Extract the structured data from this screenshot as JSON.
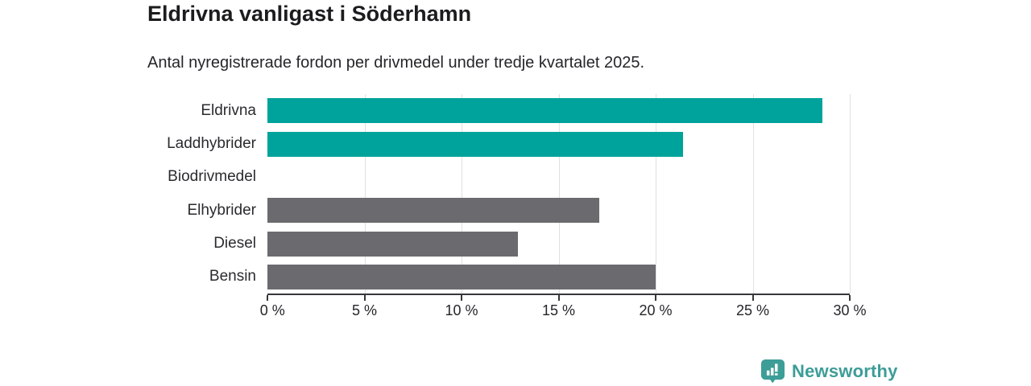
{
  "chart_data": {
    "type": "bar",
    "orientation": "horizontal",
    "title": "Eldrivna vanligast i Söderhamn",
    "subtitle": "Antal nyregistrerade fordon per drivmedel under tredje kvartalet 2025.",
    "categories": [
      "Eldrivna",
      "Laddhybrider",
      "Biodrivmedel",
      "Elhybrider",
      "Diesel",
      "Bensin"
    ],
    "values": [
      28.6,
      21.4,
      0,
      17.1,
      12.9,
      20.0
    ],
    "bar_colors": [
      "#00a39b",
      "#00a39b",
      "#6b6b6f",
      "#6b6b6f",
      "#6b6b6f",
      "#6b6b6f"
    ],
    "xlim": [
      0,
      30
    ],
    "xticks": [
      0,
      5,
      10,
      15,
      20,
      25,
      30
    ],
    "xtick_suffix": " %",
    "grid": true,
    "legend": false
  },
  "colors": {
    "highlight": "#00a39b",
    "default_bar": "#6b6b6f",
    "axis": "#37373b",
    "gridline": "#e1e1e1",
    "title_text": "#1c1c1e",
    "body_text": "#26262a"
  },
  "branding": {
    "logo_text": "Newsworthy",
    "logo_icon": "bar-chart-badge-icon",
    "logo_color": "#3d9d97"
  }
}
